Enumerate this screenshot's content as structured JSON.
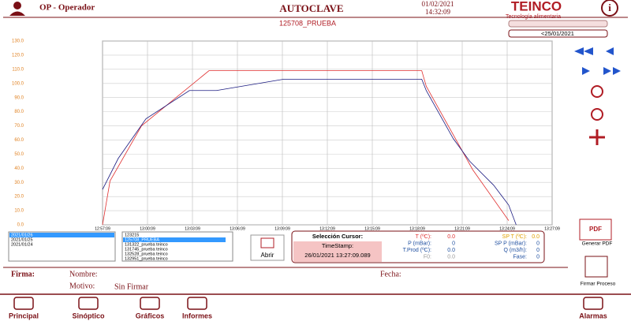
{
  "header": {
    "user": "OP - Operador",
    "title": "AUTOCLAVE",
    "date": "01/02/2021",
    "time": "14:32:09",
    "logo": "TEINCO",
    "logo_sub": "Tecnología alimentaria",
    "process": "125708_PRUEBA",
    "date_filter": "<25/01/2021"
  },
  "chart_data": {
    "type": "line",
    "xlim": [
      0,
      30
    ],
    "xticks": [
      {
        "value": 0,
        "label": "12:57:09"
      },
      {
        "value": 3,
        "label": "13:00:09"
      },
      {
        "value": 6,
        "label": "13:03:09"
      },
      {
        "value": 9,
        "label": "13:06:09"
      },
      {
        "value": 12,
        "label": "13:09:09"
      },
      {
        "value": 15,
        "label": "13:12:09"
      },
      {
        "value": 18,
        "label": "13:15:09"
      },
      {
        "value": 21,
        "label": "13:18:09"
      },
      {
        "value": 24,
        "label": "13:21:09"
      },
      {
        "value": 27,
        "label": "13:24:09"
      },
      {
        "value": 30,
        "label": "13:27:09"
      }
    ],
    "ylim": [
      0,
      130
    ],
    "yticks": [
      {
        "value": 0,
        "label": "0.0"
      },
      {
        "value": 10,
        "label": "10.0"
      },
      {
        "value": 20,
        "label": "20.0"
      },
      {
        "value": 30,
        "label": "30.0"
      },
      {
        "value": 40,
        "label": "40.0"
      },
      {
        "value": 50,
        "label": "50.0"
      },
      {
        "value": 60,
        "label": "60.0"
      },
      {
        "value": 70,
        "label": "70.0"
      },
      {
        "value": 80,
        "label": "80.0"
      },
      {
        "value": 90,
        "label": "90.0"
      },
      {
        "value": 100,
        "label": "100.0"
      },
      {
        "value": 110,
        "label": "110.0"
      },
      {
        "value": 120,
        "label": "120.0"
      },
      {
        "value": 130,
        "label": "130.0"
      }
    ],
    "grid": true,
    "series": [
      {
        "name": "SP T (ºC)",
        "color": "#e03030",
        "x": [
          0,
          0.5,
          2.6,
          7.1,
          21.3,
          21.6,
          24.7,
          27.1
        ],
        "values": [
          0,
          31,
          70,
          109,
          109,
          98,
          39,
          3
        ]
      },
      {
        "name": "T (ºC)",
        "color": "#1a1a80",
        "x": [
          0,
          1.05,
          2.9,
          5.8,
          7.6,
          12.1,
          21.3,
          21.6,
          23.4,
          24.5,
          26.1,
          27.1,
          27.6
        ],
        "values": [
          25,
          47,
          75,
          95,
          95,
          103,
          103,
          95,
          61,
          45,
          28,
          14,
          0
        ]
      }
    ]
  },
  "dates": [
    "2021/01/26",
    "2021/01/25",
    "2021/01/24"
  ],
  "processes": [
    "123215",
    "125708_PRUEBA",
    "131322_prueba teinco",
    "131745_prueba teinco",
    "132528_prueba teinco",
    "132951_prueba teinco"
  ],
  "open_button": "Abrir",
  "cursor": {
    "title": "Selección Cursor:",
    "timestamp_label": "TimeStamp:",
    "timestamp": "26/01/2021 13:27:09.089",
    "readings": [
      [
        "T (ºC):",
        "0.0"
      ],
      [
        "SP T (ºC):",
        "0.0"
      ],
      [
        "P (mBar):",
        "0"
      ],
      [
        "SP P (mBar):",
        "0"
      ],
      [
        "T.Prod (ºC):",
        "0.0"
      ],
      [
        "Q (m3/h):",
        "0"
      ],
      [
        "F0:",
        "0.0"
      ],
      [
        "Fase:",
        "0"
      ]
    ]
  },
  "actions": {
    "pdf": "Generar PDF",
    "sign": "Firmar Proceso"
  },
  "signature": {
    "firma": "Firma:",
    "nombre": "Nombre:",
    "motivo": "Motivo:",
    "estado": "Sin Firmar",
    "fecha": "Fecha:"
  },
  "nav": [
    "Principal",
    "Sinóptico",
    "Gráficos",
    "Informes",
    "Alarmas"
  ]
}
